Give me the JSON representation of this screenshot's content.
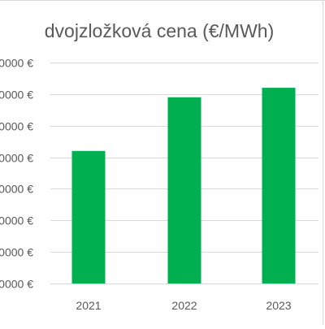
{
  "chart_data": {
    "type": "bar",
    "title": "dvojzložková cena (€/MWh)",
    "categories": [
      "2021",
      "2022",
      "2023"
    ],
    "y_tick_labels": [
      "0000 €",
      "0000 €",
      "0000 €",
      "0000 €",
      "0000 €",
      "0000 €",
      "0000 €",
      "0000 €"
    ],
    "y_tick_positions": [
      0,
      1,
      2,
      3,
      4,
      5,
      6,
      7
    ],
    "ylim": [
      0,
      7
    ],
    "values": [
      4.2,
      5.9,
      6.2
    ],
    "xlabel": "",
    "ylabel": "",
    "grid": true,
    "colors": {
      "bar": "#00b050",
      "gridline": "#d9d9d9",
      "text": "#595959",
      "frame": "#d9d9d9"
    }
  }
}
